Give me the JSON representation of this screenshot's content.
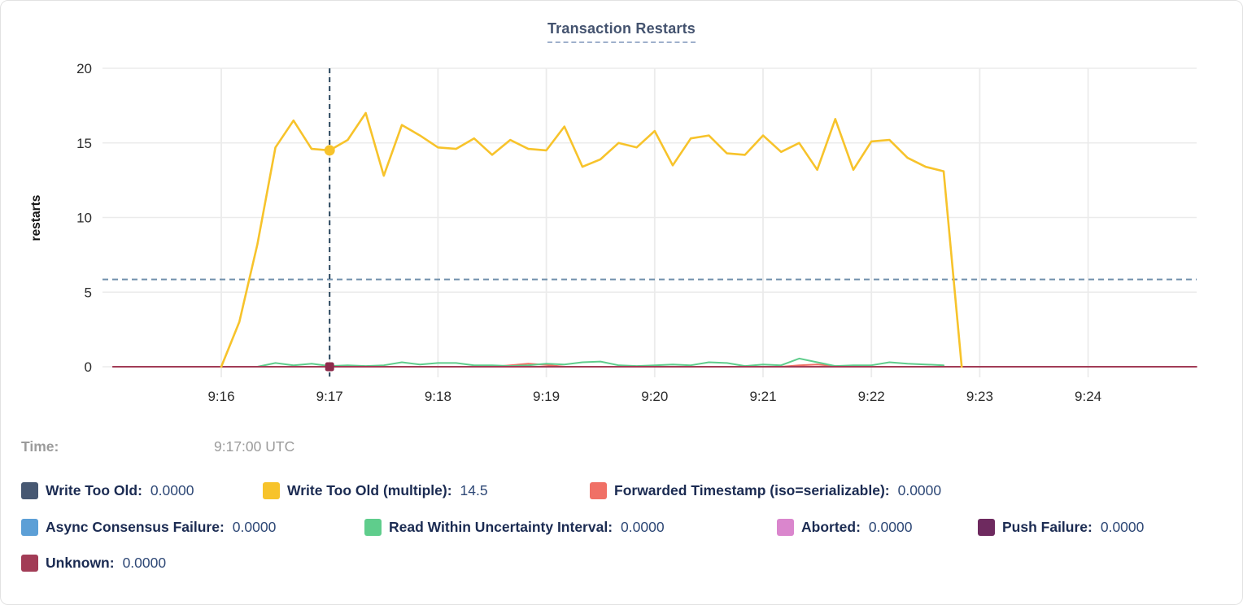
{
  "time": {
    "label": "Time:",
    "value": "9:17:00 UTC"
  },
  "chart_data": {
    "type": "line",
    "title": "Transaction Restarts",
    "xlabel": "",
    "ylabel": "restarts",
    "ylim": [
      0,
      20
    ],
    "y_ticks": [
      0,
      5,
      10,
      15,
      20
    ],
    "x_ticks": [
      "9:16",
      "9:17",
      "9:18",
      "9:19",
      "9:20",
      "9:21",
      "9:22",
      "9:23",
      "9:24"
    ],
    "x_domain": [
      "9:15:00",
      "9:25:00"
    ],
    "grid": true,
    "legend_position": "bottom",
    "reference_line_y": 5.85,
    "hover": {
      "time": "9:17:00",
      "crosshair": true,
      "points": [
        {
          "series": "Write Too Old (multiple)",
          "value": 14.5,
          "shape": "circle"
        },
        {
          "series": "Unknown",
          "value": 0,
          "shape": "square"
        }
      ]
    },
    "series": [
      {
        "name": "Write Too Old",
        "color": "#475872",
        "legend_value": "0.0000",
        "points": [
          [
            "9:16:00",
            0
          ],
          [
            "9:22:50",
            0
          ]
        ]
      },
      {
        "name": "Write Too Old (multiple)",
        "color": "#F7C32B",
        "legend_value": "14.5",
        "points": [
          [
            "9:16:00",
            0
          ],
          [
            "9:16:10",
            3.0
          ],
          [
            "9:16:20",
            8.2
          ],
          [
            "9:16:30",
            14.7
          ],
          [
            "9:16:40",
            16.5
          ],
          [
            "9:16:50",
            14.6
          ],
          [
            "9:17:00",
            14.5
          ],
          [
            "9:17:10",
            15.2
          ],
          [
            "9:17:20",
            17.0
          ],
          [
            "9:17:30",
            12.8
          ],
          [
            "9:17:40",
            16.2
          ],
          [
            "9:17:50",
            15.5
          ],
          [
            "9:18:00",
            14.7
          ],
          [
            "9:18:10",
            14.6
          ],
          [
            "9:18:20",
            15.3
          ],
          [
            "9:18:30",
            14.2
          ],
          [
            "9:18:40",
            15.2
          ],
          [
            "9:18:50",
            14.6
          ],
          [
            "9:19:00",
            14.5
          ],
          [
            "9:19:10",
            16.1
          ],
          [
            "9:19:20",
            13.4
          ],
          [
            "9:19:30",
            13.9
          ],
          [
            "9:19:40",
            15.0
          ],
          [
            "9:19:50",
            14.7
          ],
          [
            "9:20:00",
            15.8
          ],
          [
            "9:20:10",
            13.5
          ],
          [
            "9:20:20",
            15.3
          ],
          [
            "9:20:30",
            15.5
          ],
          [
            "9:20:40",
            14.3
          ],
          [
            "9:20:50",
            14.2
          ],
          [
            "9:21:00",
            15.5
          ],
          [
            "9:21:10",
            14.4
          ],
          [
            "9:21:20",
            15.0
          ],
          [
            "9:21:30",
            13.2
          ],
          [
            "9:21:40",
            16.6
          ],
          [
            "9:21:50",
            13.2
          ],
          [
            "9:22:00",
            15.1
          ],
          [
            "9:22:10",
            15.2
          ],
          [
            "9:22:20",
            14.0
          ],
          [
            "9:22:30",
            13.4
          ],
          [
            "9:22:40",
            13.1
          ],
          [
            "9:22:50",
            0
          ]
        ]
      },
      {
        "name": "Forwarded Timestamp (iso=serializable)",
        "color": "#F07066",
        "legend_value": "0.0000",
        "points": [
          [
            "9:16:00",
            0
          ],
          [
            "9:18:30",
            0
          ],
          [
            "9:18:40",
            0.1
          ],
          [
            "9:18:50",
            0.2
          ],
          [
            "9:19:00",
            0.12
          ],
          [
            "9:19:10",
            0
          ],
          [
            "9:21:10",
            0
          ],
          [
            "9:21:20",
            0.1
          ],
          [
            "9:21:30",
            0.15
          ],
          [
            "9:21:40",
            0.05
          ],
          [
            "9:21:50",
            0
          ],
          [
            "9:22:50",
            0
          ]
        ]
      },
      {
        "name": "Async Consensus Failure",
        "color": "#5C9FD6",
        "legend_value": "0.0000",
        "points": [
          [
            "9:16:00",
            0
          ],
          [
            "9:22:50",
            0
          ]
        ]
      },
      {
        "name": "Read Within Uncertainty Interval",
        "color": "#5FCD8C",
        "legend_value": "0.0000",
        "points": [
          [
            "9:16:20",
            0
          ],
          [
            "9:16:30",
            0.25
          ],
          [
            "9:16:40",
            0.1
          ],
          [
            "9:16:50",
            0.2
          ],
          [
            "9:17:00",
            0.05
          ],
          [
            "9:17:10",
            0.1
          ],
          [
            "9:17:20",
            0.05
          ],
          [
            "9:17:30",
            0.1
          ],
          [
            "9:17:40",
            0.3
          ],
          [
            "9:17:50",
            0.15
          ],
          [
            "9:18:00",
            0.25
          ],
          [
            "9:18:10",
            0.25
          ],
          [
            "9:18:20",
            0.1
          ],
          [
            "9:18:30",
            0.1
          ],
          [
            "9:18:40",
            0.05
          ],
          [
            "9:18:50",
            0.1
          ],
          [
            "9:19:00",
            0.2
          ],
          [
            "9:19:10",
            0.15
          ],
          [
            "9:19:20",
            0.3
          ],
          [
            "9:19:30",
            0.35
          ],
          [
            "9:19:40",
            0.1
          ],
          [
            "9:19:50",
            0.05
          ],
          [
            "9:20:00",
            0.1
          ],
          [
            "9:20:10",
            0.15
          ],
          [
            "9:20:20",
            0.1
          ],
          [
            "9:20:30",
            0.3
          ],
          [
            "9:20:40",
            0.25
          ],
          [
            "9:20:50",
            0.05
          ],
          [
            "9:21:00",
            0.15
          ],
          [
            "9:21:10",
            0.1
          ],
          [
            "9:21:20",
            0.55
          ],
          [
            "9:21:30",
            0.3
          ],
          [
            "9:21:40",
            0.05
          ],
          [
            "9:21:50",
            0.1
          ],
          [
            "9:22:00",
            0.1
          ],
          [
            "9:22:10",
            0.3
          ],
          [
            "9:22:20",
            0.2
          ],
          [
            "9:22:30",
            0.15
          ],
          [
            "9:22:40",
            0.1
          ]
        ]
      },
      {
        "name": "Aborted",
        "color": "#DA86CD",
        "legend_value": "0.0000",
        "points": [
          [
            "9:16:00",
            0
          ],
          [
            "9:22:50",
            0
          ]
        ]
      },
      {
        "name": "Push Failure",
        "color": "#6E2A5F",
        "legend_value": "0.0000",
        "points": [
          [
            "9:16:00",
            0
          ],
          [
            "9:22:50",
            0
          ]
        ]
      },
      {
        "name": "Unknown",
        "color": "#A23C56",
        "legend_value": "0.0000",
        "points": [
          [
            "9:15:00",
            0
          ],
          [
            "9:25:00",
            0
          ]
        ]
      }
    ]
  }
}
